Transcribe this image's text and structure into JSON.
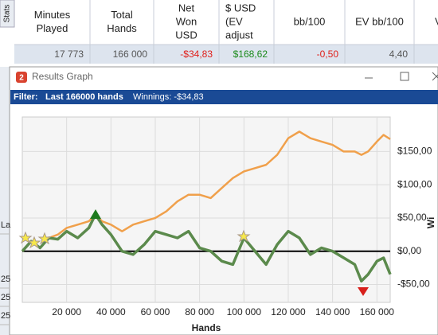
{
  "table": {
    "tab": "Stats",
    "headers": [
      [
        "Minutes",
        "Played"
      ],
      [
        "Total",
        "Hands"
      ],
      [
        "Net",
        "Won",
        "USD"
      ],
      [
        "$ USD",
        "(EV",
        "adjust"
      ],
      [
        "bb/100"
      ],
      [
        "EV bb/100"
      ],
      [
        "V"
      ]
    ],
    "row": [
      "17 773",
      "166 000",
      "-$34,83",
      "$168,62",
      "-0,50",
      "4,40"
    ]
  },
  "window": {
    "icon": "2",
    "title": "Results Graph",
    "filter_label": "Filter:",
    "filter_value": "Last 166000 hands",
    "winnings": "Winnings: -$34,83"
  },
  "background_rows": [
    "La",
    "25",
    "25",
    "25"
  ],
  "chart_data": {
    "type": "line",
    "x_label": "Hands",
    "y_label": "Wi",
    "x": [
      0,
      4000,
      8000,
      12000,
      16000,
      20000,
      25000,
      30000,
      33000,
      36000,
      40000,
      45000,
      50000,
      55000,
      60000,
      65000,
      70000,
      75000,
      80000,
      85000,
      90000,
      95000,
      100000,
      105000,
      110000,
      115000,
      120000,
      125000,
      130000,
      135000,
      140000,
      145000,
      150000,
      153000,
      156000,
      160000,
      163000,
      166000
    ],
    "series": [
      {
        "name": "EV adjusted",
        "color": "#f0a04b",
        "values": [
          0,
          15,
          5,
          20,
          25,
          35,
          40,
          45,
          55,
          45,
          40,
          30,
          40,
          45,
          50,
          60,
          75,
          85,
          85,
          80,
          95,
          110,
          120,
          125,
          130,
          145,
          170,
          180,
          170,
          165,
          160,
          150,
          150,
          145,
          150,
          165,
          175,
          168.62
        ]
      },
      {
        "name": "Net won",
        "color": "#5b8a4c",
        "values": [
          0,
          15,
          5,
          20,
          18,
          30,
          20,
          35,
          55,
          40,
          25,
          0,
          -5,
          10,
          30,
          25,
          20,
          30,
          5,
          0,
          -15,
          -20,
          20,
          0,
          -20,
          10,
          30,
          20,
          -5,
          5,
          0,
          -10,
          -20,
          -45,
          -35,
          -15,
          -10,
          -34.83
        ]
      }
    ],
    "xlim": [
      0,
      166000
    ],
    "ylim": [
      -77,
      202
    ],
    "xticks": [
      {
        "value": 20000,
        "label": "20 000"
      },
      {
        "value": 40000,
        "label": "40 000"
      },
      {
        "value": 60000,
        "label": "60 000"
      },
      {
        "value": 80000,
        "label": "80 000"
      },
      {
        "value": 100000,
        "label": "100 000"
      },
      {
        "value": 120000,
        "label": "120 000"
      },
      {
        "value": 140000,
        "label": "140 000"
      },
      {
        "value": 160000,
        "label": "160 000"
      }
    ],
    "yticks": [
      {
        "value": -50,
        "label": "-$50,00"
      },
      {
        "value": 0,
        "label": "$0,00"
      },
      {
        "value": 50,
        "label": "$50,00"
      },
      {
        "value": 100,
        "label": "$100,00"
      },
      {
        "value": 150,
        "label": "$150,00"
      }
    ],
    "grid": true
  }
}
